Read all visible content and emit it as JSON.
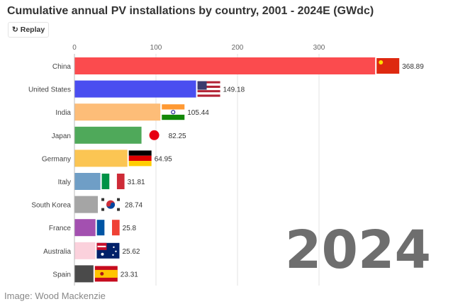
{
  "title": "Cumulative annual PV installations by country, 2001 - 2024E (GWdc)",
  "replay": {
    "icon": "replay-icon",
    "label": "Replay"
  },
  "credit": "Image: Wood Mackenzie",
  "chart_data": {
    "type": "bar",
    "orientation": "horizontal",
    "title": "Cumulative annual PV installations by country, 2001 - 2024E (GWdc)",
    "year_label": "2024",
    "xlim": [
      0,
      369
    ],
    "xticks": [
      0,
      100,
      200,
      300
    ],
    "grid": true,
    "categories": [
      "China",
      "United States",
      "India",
      "Japan",
      "Germany",
      "Italy",
      "South Korea",
      "France",
      "Australia",
      "Spain"
    ],
    "values": [
      368.89,
      149.18,
      105.44,
      82.25,
      64.95,
      31.81,
      28.74,
      25.8,
      25.62,
      23.31
    ],
    "value_labels": [
      "368.89",
      "149.18",
      "105.44",
      "82.25",
      "64.95",
      "31.81",
      "28.74",
      "25.8",
      "25.62",
      "23.31"
    ],
    "colors": [
      "#fb4b4e",
      "#4a4ef0",
      "#fdbd78",
      "#4fa95a",
      "#fbc553",
      "#6f9ec6",
      "#a5a5a5",
      "#a350b0",
      "#fbd1dc",
      "#4a4a4a"
    ],
    "flags": [
      "cn",
      "us",
      "in",
      "jp",
      "de",
      "it",
      "kr",
      "fr",
      "au",
      "es"
    ]
  }
}
